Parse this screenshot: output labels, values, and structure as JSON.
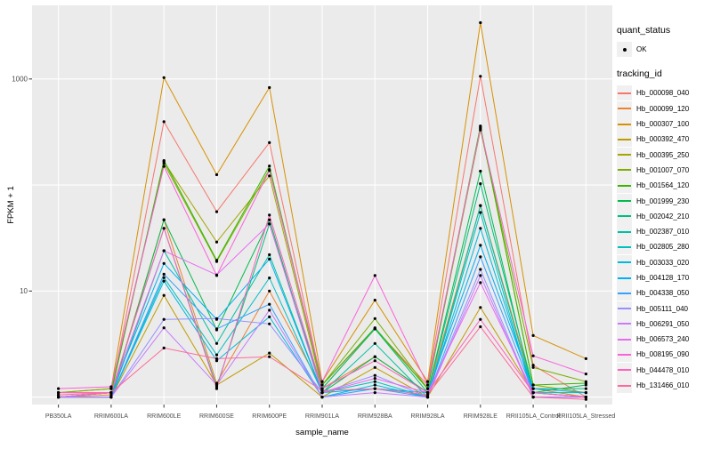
{
  "legend": {
    "quant_status_title": "quant_status",
    "quant_status_value": "OK",
    "tracking_id_title": "tracking_id",
    "ok_marker_color": "#000000",
    "key_background": "#F0F0F0"
  },
  "chart_data": {
    "type": "line",
    "title": "",
    "xlabel": "sample_name",
    "ylabel": "FPKM + 1",
    "scale": "log10",
    "ylim": [
      0.85,
      4950
    ],
    "y_ticks": [
      {
        "label": "1000",
        "value": 1000
      },
      {
        "label": "10",
        "value": 10
      }
    ],
    "gridline_values": [
      1,
      10,
      100,
      1000
    ],
    "panel_bg": "#EBEBEB",
    "gridline_color": "#FFFFFF",
    "tick_color": "#333333",
    "point_color": "#000000",
    "legend_position": "right",
    "categories": [
      "PB350LA",
      "RRIM600LA",
      "RRIM600LE",
      "RRIM600SE",
      "RRIM600PE",
      "RRIM901LA",
      "RRIM928BA",
      "RRIM928LA",
      "RRIM928LE",
      "RRII105LA_Control",
      "RRII105LA_Stressed"
    ],
    "series": [
      {
        "name": "Hb_000098_040",
        "color": "#F8766D",
        "values": [
          1.1,
          1.1,
          395,
          56,
          251,
          1.3,
          4.4,
          1.3,
          1060,
          2.0,
          1.0
        ]
      },
      {
        "name": "Hb_000099_120",
        "color": "#EA8331",
        "values": [
          1.0,
          1.05,
          47,
          1.35,
          10,
          1.2,
          2.4,
          1.1,
          64,
          1.2,
          1.0
        ]
      },
      {
        "name": "Hb_000307_100",
        "color": "#D89000",
        "values": [
          1.1,
          1.2,
          1030,
          125,
          830,
          1.4,
          8.2,
          1.4,
          3400,
          3.8,
          2.3
        ]
      },
      {
        "name": "Hb_000392_470",
        "color": "#C09B00",
        "values": [
          1.0,
          1.0,
          9.1,
          1.3,
          2.6,
          1.0,
          1.9,
          1.0,
          7.0,
          1.1,
          1.0
        ]
      },
      {
        "name": "Hb_000395_250",
        "color": "#A3A500",
        "values": [
          1.0,
          1.1,
          166,
          29,
          122,
          1.2,
          4.4,
          1.2,
          350,
          1.3,
          1.1
        ]
      },
      {
        "name": "Hb_001007_070",
        "color": "#7CAE00",
        "values": [
          1.1,
          1.2,
          160,
          19,
          140,
          1.3,
          5.5,
          1.2,
          330,
          1.9,
          1.4
        ]
      },
      {
        "name": "Hb_001564_120",
        "color": "#39B600",
        "values": [
          1.0,
          1.1,
          170,
          19.5,
          151,
          1.3,
          4.5,
          1.2,
          360,
          1.3,
          1.35
        ]
      },
      {
        "name": "Hb_001999_230",
        "color": "#00BB4E",
        "values": [
          1.0,
          1.0,
          47,
          4.3,
          47,
          1.1,
          2.4,
          1.1,
          135,
          1.1,
          1.3
        ]
      },
      {
        "name": "Hb_002042_210",
        "color": "#00C07E",
        "values": [
          1.0,
          1.1,
          39,
          1.25,
          43,
          1.2,
          4.4,
          1.1,
          103,
          1.2,
          1.2
        ]
      },
      {
        "name": "Hb_002387_010",
        "color": "#00C1A3",
        "values": [
          1.0,
          1.0,
          24,
          3.2,
          22,
          1.1,
          3.2,
          1.0,
          64,
          1.1,
          1.1
        ]
      },
      {
        "name": "Hb_002805_280",
        "color": "#00BFC4",
        "values": [
          1.0,
          1.0,
          13.4,
          2.5,
          13.3,
          1.1,
          1.4,
          1.0,
          55,
          1.0,
          1.0
        ]
      },
      {
        "name": "Hb_003033_020",
        "color": "#00BADE",
        "values": [
          1.0,
          1.0,
          12.4,
          2.2,
          5.7,
          1.0,
          1.3,
          1.0,
          39,
          1.1,
          1.0
        ]
      },
      {
        "name": "Hb_004128_170",
        "color": "#00B0F6",
        "values": [
          1.0,
          1.1,
          18.2,
          5.4,
          20,
          1.1,
          1.2,
          1.1,
          27,
          1.2,
          1.1
        ]
      },
      {
        "name": "Hb_004338_050",
        "color": "#35A2FF",
        "values": [
          1.0,
          1.0,
          14.4,
          4.4,
          7.5,
          1.0,
          1.2,
          1.0,
          21,
          1.1,
          1.0
        ]
      },
      {
        "name": "Hb_005111_040",
        "color": "#9590FF",
        "values": [
          1.0,
          1.0,
          5.4,
          5.5,
          4.9,
          1.1,
          1.6,
          1.0,
          16,
          1.0,
          1.0
        ]
      },
      {
        "name": "Hb_006291_050",
        "color": "#C77CFF",
        "values": [
          1.0,
          1.0,
          4.5,
          1.3,
          6.6,
          1.0,
          1.1,
          1.0,
          14,
          1.0,
          1.0
        ]
      },
      {
        "name": "Hb_006573_240",
        "color": "#E76BF3",
        "values": [
          1.0,
          1.1,
          24,
          14.2,
          43,
          1.1,
          1.5,
          1.1,
          12,
          1.1,
          1.0
        ]
      },
      {
        "name": "Hb_008195_090",
        "color": "#FA62DB",
        "values": [
          1.2,
          1.25,
          150,
          14.0,
          137,
          1.4,
          14,
          1.3,
          340,
          2.45,
          1.65
        ]
      },
      {
        "name": "Hb_044478_010",
        "color": "#FF62BC",
        "values": [
          1.1,
          1.1,
          39,
          1.2,
          52,
          1.2,
          2.2,
          1.1,
          5.4,
          1.1,
          1.0
        ]
      },
      {
        "name": "Hb_131466_010",
        "color": "#FF6A98",
        "values": [
          1.05,
          1.1,
          2.9,
          2.3,
          2.4,
          1.15,
          1.2,
          1.05,
          4.6,
          1.0,
          0.95
        ]
      }
    ]
  }
}
